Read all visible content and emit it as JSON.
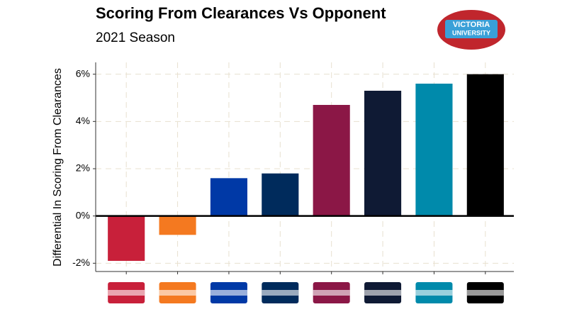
{
  "chart_data": {
    "type": "bar",
    "title": "Scoring From Clearances Vs Opponent",
    "subtitle": "2021 Season",
    "y_label": "Differential In Scoring From Clearances",
    "categories": [
      null,
      null,
      null,
      null,
      null,
      null,
      null,
      null
    ],
    "values": [
      -1.9,
      -0.8,
      1.6,
      1.8,
      4.7,
      5.3,
      5.6,
      6.0
    ],
    "colors": [
      "#c8203a",
      "#f47920",
      "#0039a6",
      "#002b5c",
      "#8b1746",
      "#0f1a34",
      "#008aab",
      "#000000"
    ],
    "ylim": [
      -2.35,
      6.5
    ],
    "yticks": [
      {
        "value": -2,
        "label": "-2%"
      },
      {
        "value": 0,
        "label": "0%"
      },
      {
        "value": 2,
        "label": "2%"
      },
      {
        "value": 4,
        "label": "4%"
      },
      {
        "value": 6,
        "label": "6%"
      }
    ],
    "grid": true
  },
  "logo": [
    "VICTORIA",
    "UNIVERSITY"
  ]
}
